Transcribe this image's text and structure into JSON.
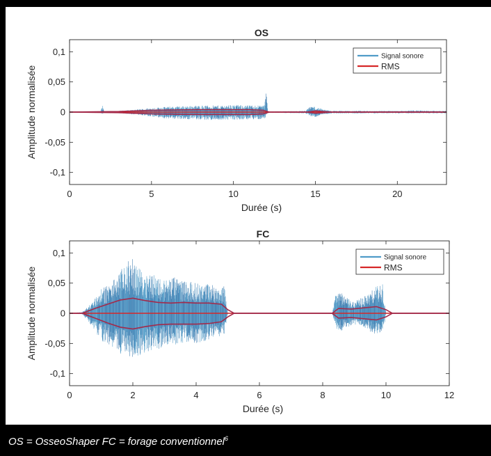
{
  "caption": {
    "text": "OS = OsseoShaper   FC = forage conventionnel",
    "superscript": "6"
  },
  "colors": {
    "signal": "#4f9bc8",
    "signal_dark": "#2a6fa8",
    "rms": "#d62728",
    "axis": "#262626"
  },
  "chart_data": [
    {
      "type": "line",
      "title": "OS",
      "xlabel": "Durée (s)",
      "ylabel": "Amplitude normalisée",
      "xlim": [
        0,
        23
      ],
      "ylim": [
        -0.12,
        0.12
      ],
      "xticks": [
        0,
        5,
        10,
        15,
        20
      ],
      "xtick_labels": [
        "0",
        "5",
        "10",
        "15",
        "20"
      ],
      "yticks": [
        0.1,
        0.05,
        0,
        -0.05,
        -0.1
      ],
      "ytick_labels": [
        "0,1",
        "0,05",
        "0",
        "-0,05",
        "-0,1"
      ],
      "legend": {
        "position": "top-right",
        "entries": [
          "Signal sonore",
          "RMS"
        ]
      },
      "series": [
        {
          "name": "Signal sonore",
          "kind": "envelope",
          "x": [
            0,
            1.9,
            2,
            2.1,
            3,
            4,
            5,
            6,
            7,
            8,
            9,
            10,
            11,
            11.9,
            12.0,
            12.1,
            14.4,
            14.7,
            15.0,
            15.5,
            16,
            17,
            18,
            20,
            21,
            22,
            23
          ],
          "ymax": [
            0.001,
            0.001,
            0.012,
            0.001,
            0.002,
            0.004,
            0.007,
            0.009,
            0.01,
            0.011,
            0.011,
            0.012,
            0.011,
            0.012,
            0.038,
            0.001,
            0.002,
            0.01,
            0.009,
            0.004,
            0.002,
            0.002,
            0.002,
            0.002,
            0.003,
            0.002,
            0.002
          ],
          "ymin": [
            -0.001,
            -0.001,
            -0.004,
            -0.001,
            -0.002,
            -0.004,
            -0.008,
            -0.011,
            -0.012,
            -0.013,
            -0.013,
            -0.013,
            -0.012,
            -0.012,
            -0.005,
            -0.001,
            -0.002,
            -0.007,
            -0.008,
            -0.004,
            -0.002,
            -0.002,
            -0.002,
            -0.002,
            -0.002,
            -0.002,
            -0.002
          ]
        },
        {
          "name": "RMS",
          "kind": "envelope",
          "x": [
            0,
            3,
            5,
            8,
            11,
            11.8,
            12.2,
            14.5,
            15,
            16,
            23
          ],
          "ymax": [
            0.0,
            0.001,
            0.003,
            0.004,
            0.004,
            0.003,
            0.0,
            0.0,
            0.002,
            0.0,
            0.0
          ],
          "ymin": [
            0.0,
            -0.001,
            -0.003,
            -0.004,
            -0.004,
            -0.003,
            0.0,
            0.0,
            -0.002,
            0.0,
            0.0
          ]
        }
      ]
    },
    {
      "type": "line",
      "title": "FC",
      "xlabel": "Durée (s)",
      "ylabel": "Amplitude normalisée",
      "xlim": [
        0,
        12
      ],
      "ylim": [
        -0.12,
        0.12
      ],
      "xticks": [
        0,
        2,
        4,
        6,
        8,
        10,
        12
      ],
      "xtick_labels": [
        "0",
        "2",
        "4",
        "6",
        "8",
        "10",
        "12"
      ],
      "yticks": [
        0.1,
        0.05,
        0,
        -0.05,
        -0.1
      ],
      "ytick_labels": [
        "0,1",
        "0,05",
        "0",
        "-0,05",
        "-0,1"
      ],
      "legend": {
        "position": "top-right",
        "entries": [
          "Signal sonore",
          "RMS"
        ]
      },
      "series": [
        {
          "name": "Signal sonore",
          "kind": "envelope",
          "x": [
            0,
            0.4,
            0.6,
            0.8,
            1.0,
            1.3,
            1.6,
            1.8,
            2.0,
            2.2,
            2.5,
            2.8,
            3.0,
            3.3,
            3.6,
            4.0,
            4.4,
            4.7,
            4.9,
            5.0,
            5.1,
            8.3,
            8.4,
            8.6,
            8.9,
            9.2,
            9.5,
            9.7,
            9.9,
            10.0,
            12
          ],
          "ymax": [
            0.0,
            0.002,
            0.012,
            0.025,
            0.04,
            0.05,
            0.07,
            0.085,
            0.09,
            0.075,
            0.07,
            0.06,
            0.055,
            0.06,
            0.055,
            0.05,
            0.05,
            0.045,
            0.045,
            0.0,
            0.0,
            0.0,
            0.03,
            0.035,
            0.02,
            0.025,
            0.035,
            0.045,
            0.05,
            0.0,
            0.0
          ],
          "ymin": [
            0.0,
            -0.002,
            -0.015,
            -0.03,
            -0.045,
            -0.055,
            -0.07,
            -0.078,
            -0.075,
            -0.07,
            -0.065,
            -0.06,
            -0.055,
            -0.055,
            -0.05,
            -0.05,
            -0.045,
            -0.04,
            -0.035,
            0.0,
            0.0,
            0.0,
            -0.025,
            -0.03,
            -0.02,
            -0.02,
            -0.03,
            -0.04,
            -0.04,
            0.0,
            0.0
          ]
        },
        {
          "name": "RMS",
          "kind": "envelope",
          "x": [
            0,
            0.4,
            0.8,
            1.2,
            1.6,
            2.0,
            2.4,
            2.8,
            3.2,
            3.6,
            4.0,
            4.4,
            4.8,
            5.0,
            5.2,
            8.3,
            8.5,
            8.9,
            9.3,
            9.7,
            10.0,
            10.2,
            12
          ],
          "ymax": [
            0.0,
            0.0,
            0.008,
            0.015,
            0.022,
            0.025,
            0.021,
            0.018,
            0.017,
            0.018,
            0.017,
            0.017,
            0.015,
            0.006,
            0.0,
            0.0,
            0.008,
            0.007,
            0.009,
            0.011,
            0.006,
            0.0,
            0.0
          ],
          "ymin": [
            0.0,
            0.0,
            -0.008,
            -0.016,
            -0.023,
            -0.026,
            -0.022,
            -0.019,
            -0.018,
            -0.018,
            -0.018,
            -0.017,
            -0.014,
            -0.006,
            0.0,
            0.0,
            -0.008,
            -0.007,
            -0.009,
            -0.011,
            -0.006,
            0.0,
            0.0
          ]
        }
      ]
    }
  ]
}
